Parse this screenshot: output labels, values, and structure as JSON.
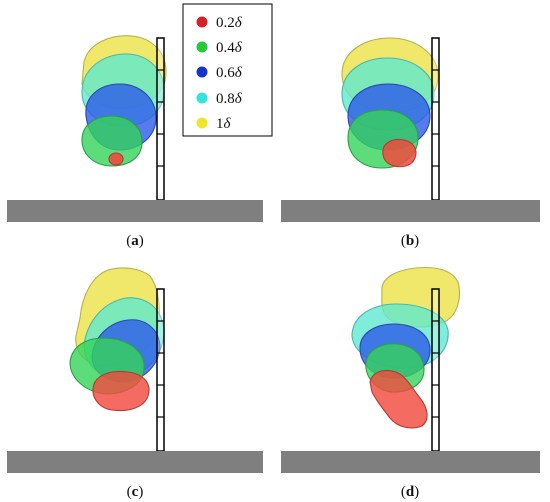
{
  "legend": {
    "items": [
      {
        "symbol": "δ",
        "coef": "0.2",
        "color": "#e8232a"
      },
      {
        "symbol": "δ",
        "coef": "0.4",
        "color": "#2ecc40"
      },
      {
        "symbol": "δ",
        "coef": "0.6",
        "color": "#1f3fd1"
      },
      {
        "symbol": "δ",
        "coef": "0.8",
        "color": "#3ee6e0"
      },
      {
        "symbol": "δ",
        "coef": "1",
        "color": "#f2ea3a"
      }
    ]
  },
  "panels": [
    {
      "caption_open": "(",
      "caption_letter": "a",
      "caption_close": ")"
    },
    {
      "caption_open": "(",
      "caption_letter": "b",
      "caption_close": ")"
    },
    {
      "caption_open": "(",
      "caption_letter": "c",
      "caption_close": ")"
    },
    {
      "caption_open": "(",
      "caption_letter": "d",
      "caption_close": ")"
    }
  ],
  "colors": {
    "ground": "#7f7f7f",
    "wall_stroke": "#000000",
    "fill_02": "#f04a3e",
    "fill_04": "#35d35a",
    "fill_06": "#2f5ee8",
    "fill_08": "#5fe8cf",
    "fill_10": "#ece34a"
  }
}
